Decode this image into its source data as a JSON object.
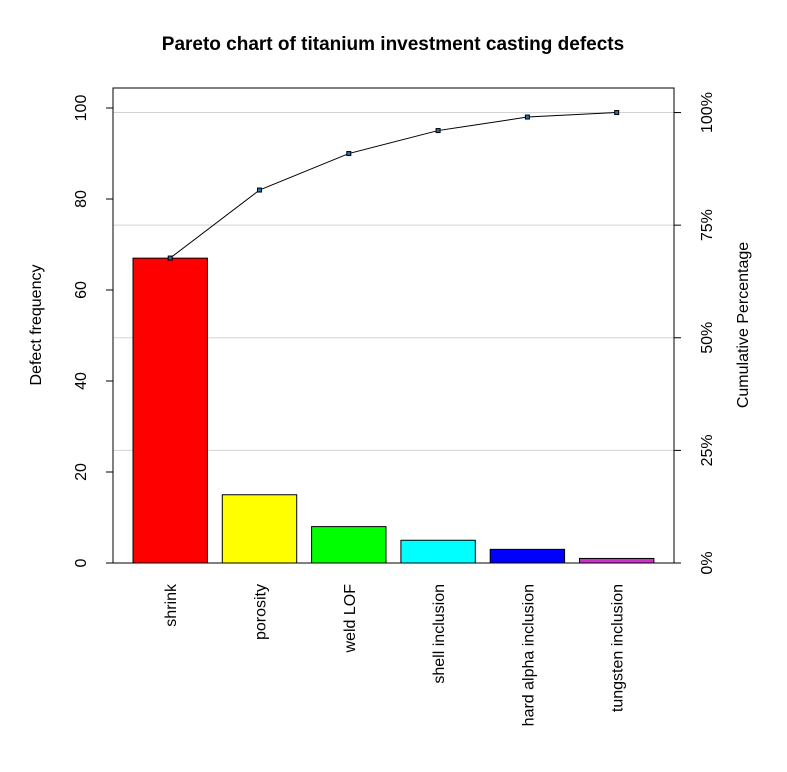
{
  "chart_data": {
    "type": "bar",
    "title": "Pareto chart of titanium investment casting defects",
    "ylabel": "Defect frequency",
    "ylabel_right": "Cumulative Percentage",
    "categories": [
      "shrink",
      "porosity",
      "weld LOF",
      "shell inclusion",
      "hard alpha inclusion",
      "tungsten inclusion"
    ],
    "values": [
      67,
      15,
      8,
      5,
      3,
      1
    ],
    "cumulative_percentage": [
      67.7,
      82.8,
      90.9,
      96.0,
      99.0,
      100.0
    ],
    "bar_colors": [
      "#ff0000",
      "#ffff00",
      "#00ff00",
      "#00ffff",
      "#0000ff",
      "#cc33cc"
    ],
    "ylim": [
      0,
      100
    ],
    "yticks": [
      0,
      20,
      40,
      60,
      80,
      100
    ],
    "right_ticks": [
      "0%",
      "25%",
      "50%",
      "75%",
      "100%"
    ],
    "grid": "horizontal at cumulative percentage ticks",
    "line_color": "#000000",
    "grid_color": "#d3d3d3"
  }
}
